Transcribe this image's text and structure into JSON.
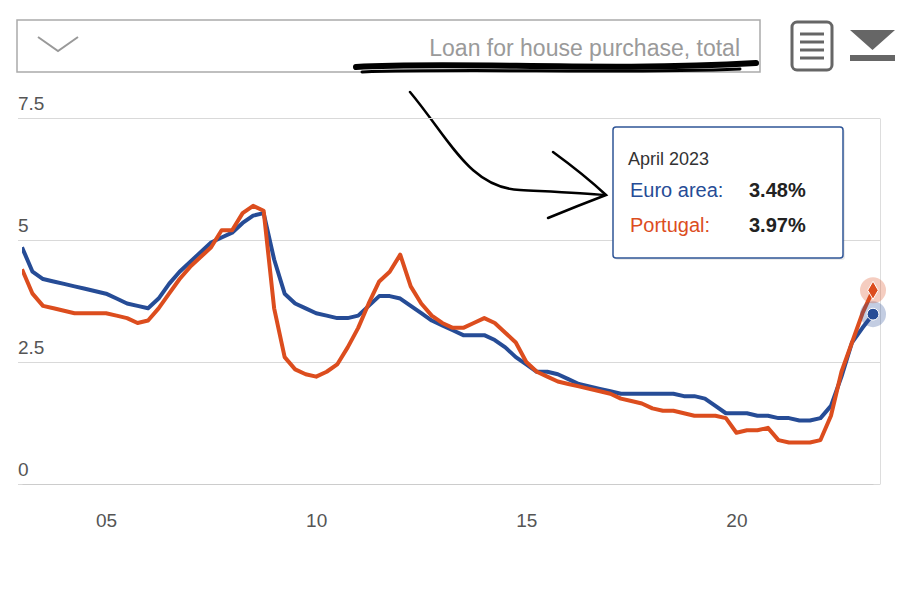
{
  "chart_data": {
    "type": "line",
    "title": "Loan for house purchase, total",
    "x": [
      2003,
      2003.25,
      2003.5,
      2003.75,
      2004,
      2004.25,
      2004.5,
      2004.75,
      2005,
      2005.25,
      2005.5,
      2005.75,
      2006,
      2006.25,
      2006.5,
      2006.75,
      2007,
      2007.25,
      2007.5,
      2007.75,
      2008,
      2008.25,
      2008.5,
      2008.75,
      2009,
      2009.25,
      2009.5,
      2009.75,
      2010,
      2010.25,
      2010.5,
      2010.75,
      2011,
      2011.25,
      2011.5,
      2011.75,
      2012,
      2012.25,
      2012.5,
      2012.75,
      2013,
      2013.25,
      2013.5,
      2013.75,
      2014,
      2014.25,
      2014.5,
      2014.75,
      2015,
      2015.25,
      2015.5,
      2015.75,
      2016,
      2016.25,
      2016.5,
      2016.75,
      2017,
      2017.25,
      2017.5,
      2017.75,
      2018,
      2018.25,
      2018.5,
      2018.75,
      2019,
      2019.25,
      2019.5,
      2019.75,
      2020,
      2020.25,
      2020.5,
      2020.75,
      2021,
      2021.25,
      2021.5,
      2021.75,
      2022,
      2022.25,
      2022.5,
      2022.75,
      2023,
      2023.25
    ],
    "series": [
      {
        "name": "Euro area",
        "color": "#264c96",
        "values": [
          4.85,
          4.35,
          4.2,
          4.15,
          4.1,
          4.05,
          4.0,
          3.95,
          3.9,
          3.8,
          3.7,
          3.65,
          3.6,
          3.8,
          4.1,
          4.35,
          4.55,
          4.75,
          4.95,
          5.05,
          5.15,
          5.35,
          5.5,
          5.55,
          4.6,
          3.9,
          3.7,
          3.6,
          3.5,
          3.45,
          3.4,
          3.4,
          3.45,
          3.65,
          3.85,
          3.85,
          3.8,
          3.65,
          3.5,
          3.35,
          3.25,
          3.15,
          3.05,
          3.05,
          3.05,
          2.95,
          2.8,
          2.6,
          2.45,
          2.3,
          2.3,
          2.25,
          2.15,
          2.05,
          2.0,
          1.95,
          1.9,
          1.85,
          1.85,
          1.85,
          1.85,
          1.85,
          1.85,
          1.8,
          1.8,
          1.75,
          1.6,
          1.45,
          1.45,
          1.45,
          1.4,
          1.4,
          1.35,
          1.35,
          1.3,
          1.3,
          1.35,
          1.6,
          2.2,
          2.9,
          3.2,
          3.48
        ]
      },
      {
        "name": "Portugal",
        "color": "#dc4d1e",
        "values": [
          4.4,
          3.9,
          3.65,
          3.6,
          3.55,
          3.5,
          3.5,
          3.5,
          3.5,
          3.45,
          3.4,
          3.3,
          3.35,
          3.6,
          3.9,
          4.2,
          4.45,
          4.65,
          4.85,
          5.2,
          5.2,
          5.55,
          5.7,
          5.6,
          3.6,
          2.6,
          2.35,
          2.25,
          2.2,
          2.3,
          2.45,
          2.8,
          3.2,
          3.7,
          4.15,
          4.35,
          4.7,
          4.05,
          3.7,
          3.45,
          3.3,
          3.2,
          3.2,
          3.3,
          3.4,
          3.3,
          3.1,
          2.9,
          2.5,
          2.3,
          2.2,
          2.1,
          2.05,
          2.0,
          1.95,
          1.9,
          1.85,
          1.75,
          1.7,
          1.65,
          1.55,
          1.5,
          1.5,
          1.45,
          1.4,
          1.4,
          1.4,
          1.35,
          1.05,
          1.1,
          1.1,
          1.15,
          0.9,
          0.85,
          0.85,
          0.85,
          0.9,
          1.4,
          2.3,
          2.9,
          3.5,
          3.97
        ]
      }
    ],
    "xlim": [
      2003,
      2023.25
    ],
    "xticks": [
      {
        "value": 2005,
        "label": "05"
      },
      {
        "value": 2010,
        "label": "10"
      },
      {
        "value": 2015,
        "label": "15"
      },
      {
        "value": 2020,
        "label": "20"
      }
    ],
    "ylim": [
      0,
      7.5
    ],
    "yticks": [
      0,
      2.5,
      5,
      7.5
    ],
    "grid": true,
    "tooltip": {
      "title": "April 2023",
      "rows": [
        {
          "label": "Euro area:",
          "value": 3.48,
          "value_label": "3.48%"
        },
        {
          "label": "Portugal:",
          "value": 3.97,
          "value_label": "3.97%"
        }
      ]
    }
  }
}
